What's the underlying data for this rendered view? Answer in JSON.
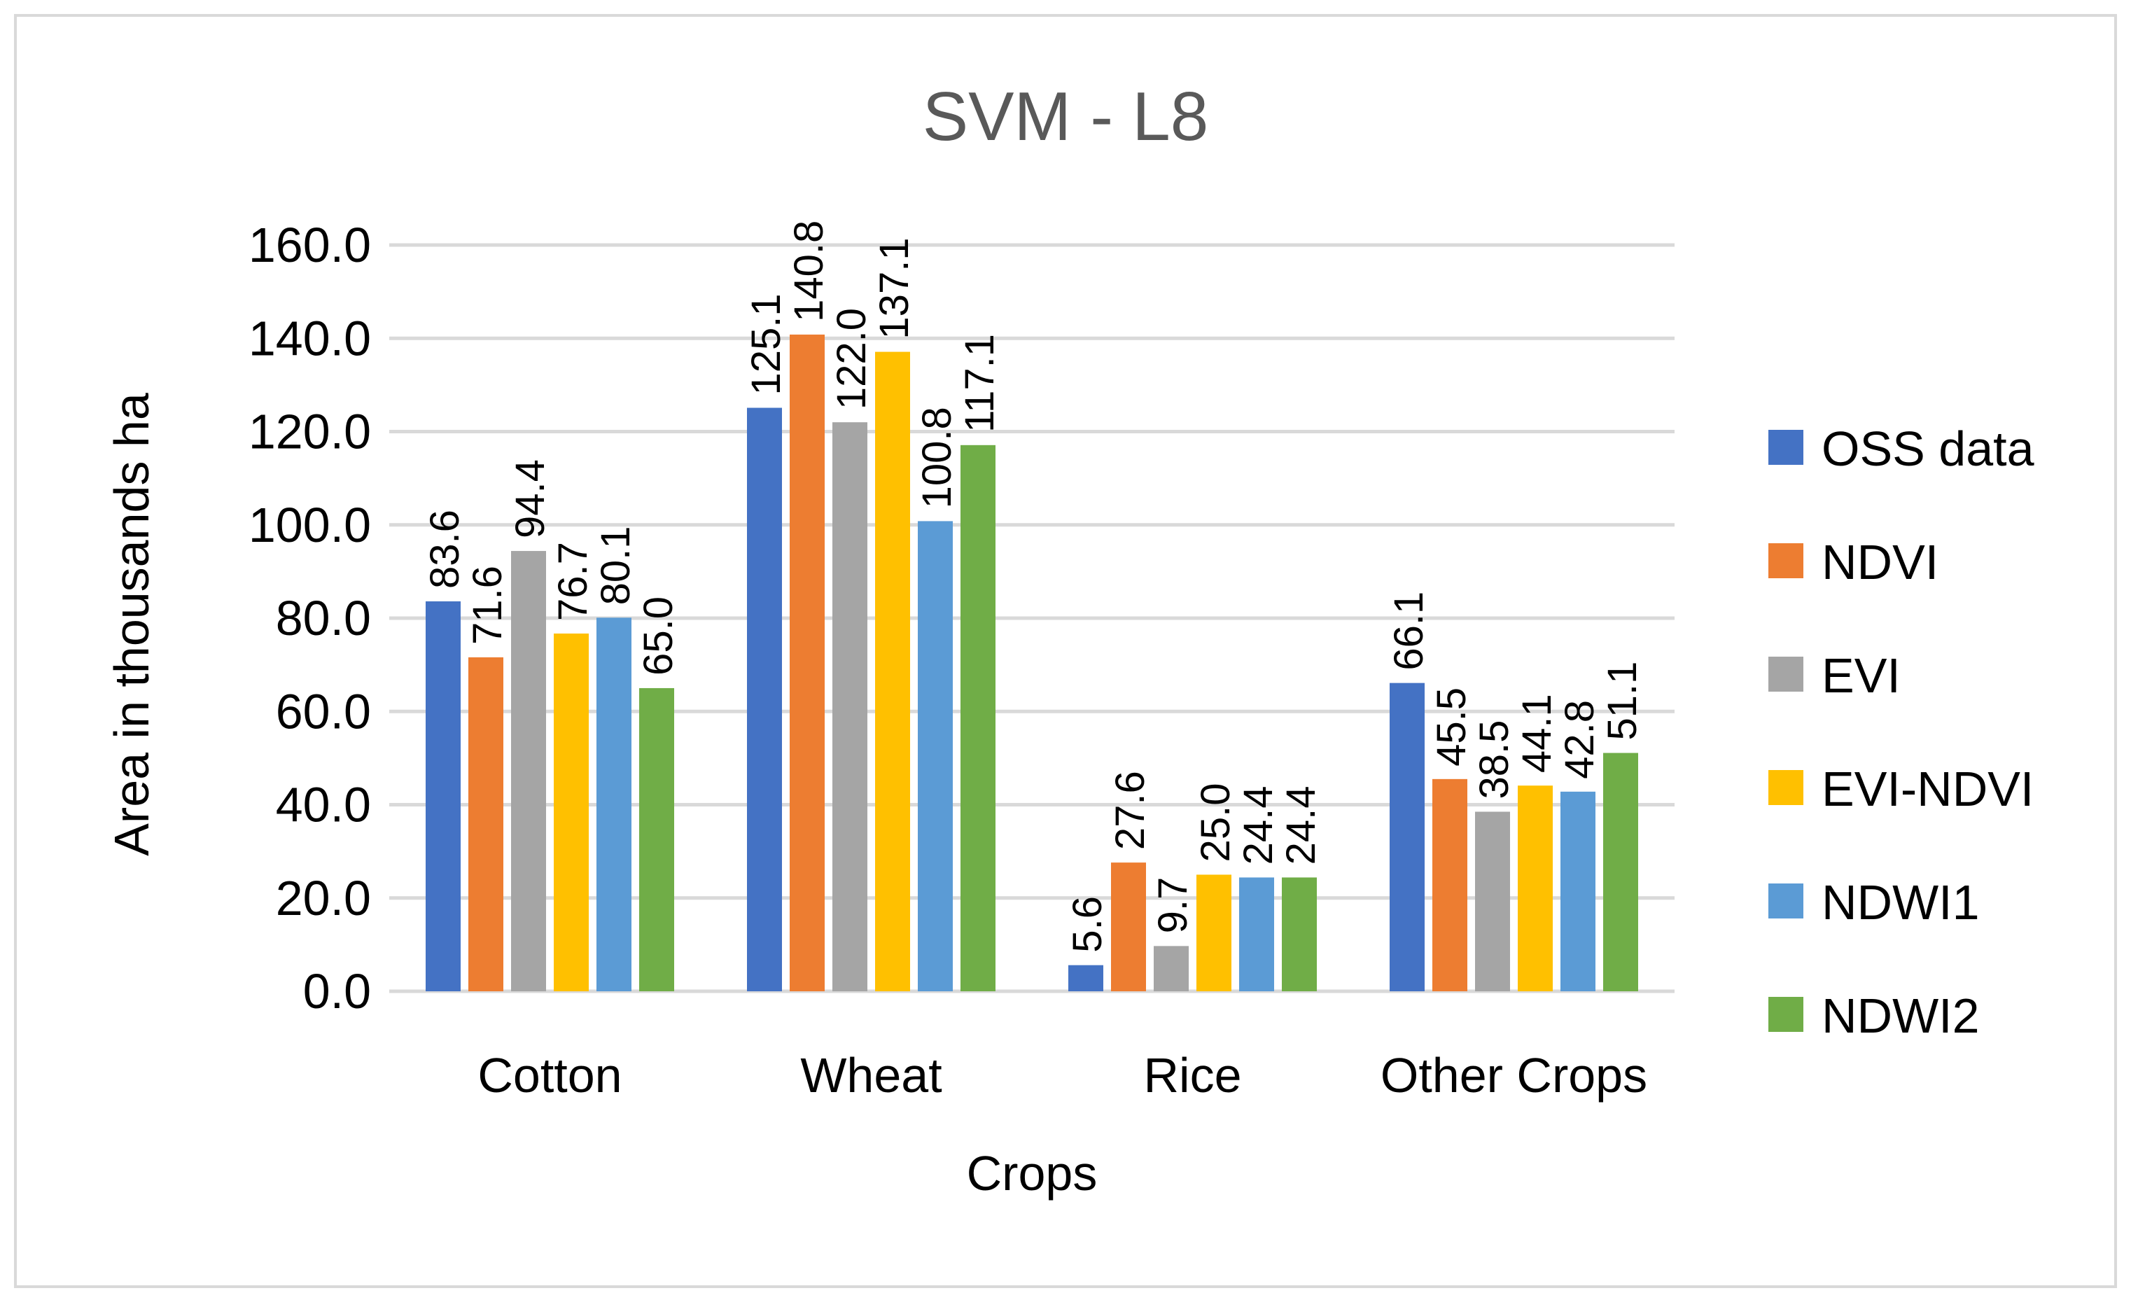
{
  "chart_data": {
    "type": "bar",
    "title": "SVM - L8",
    "xlabel": "Crops",
    "ylabel": "Area in thousands ha",
    "ylim": [
      0,
      160
    ],
    "yticks": [
      "0.0",
      "20.0",
      "40.0",
      "60.0",
      "80.0",
      "100.0",
      "120.0",
      "140.0",
      "160.0"
    ],
    "grid": true,
    "legend_position": "right",
    "categories": [
      "Cotton",
      "Wheat",
      "Rice",
      "Other Crops"
    ],
    "series": [
      {
        "name": "OSS data",
        "color": "#4472C4",
        "values": [
          83.6,
          125.1,
          5.6,
          66.1
        ],
        "labels": [
          "83.6",
          "125.1",
          "5.6",
          "66.1"
        ]
      },
      {
        "name": "NDVI",
        "color": "#ED7D31",
        "values": [
          71.6,
          140.8,
          27.6,
          45.5
        ],
        "labels": [
          "71.6",
          "140.8",
          "27.6",
          "45.5"
        ]
      },
      {
        "name": "EVI",
        "color": "#A5A5A5",
        "values": [
          94.4,
          122.0,
          9.7,
          38.5
        ],
        "labels": [
          "94.4",
          "122.0",
          "9.7",
          "38.5"
        ]
      },
      {
        "name": "EVI-NDVI",
        "color": "#FFC000",
        "values": [
          76.7,
          137.1,
          25.0,
          44.1
        ],
        "labels": [
          "76.7",
          "137.1",
          "25.0",
          "44.1"
        ]
      },
      {
        "name": "NDWI1",
        "color": "#5B9BD5",
        "values": [
          80.1,
          100.8,
          24.4,
          42.8
        ],
        "labels": [
          "80.1",
          "100.8",
          "24.4",
          "42.8"
        ]
      },
      {
        "name": "NDWI2",
        "color": "#70AD47",
        "values": [
          65.0,
          117.1,
          24.4,
          51.1
        ],
        "labels": [
          "65.0",
          "117.1",
          "24.4",
          "51.1"
        ]
      }
    ]
  }
}
